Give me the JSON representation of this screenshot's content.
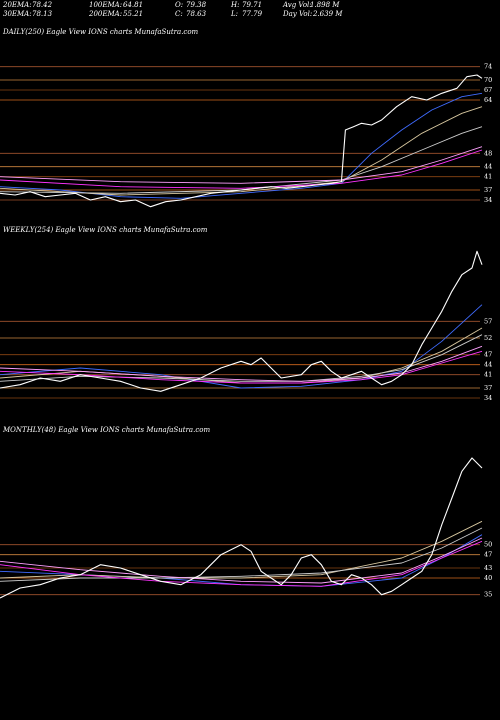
{
  "header": {
    "row1": [
      {
        "label": "20EMA:",
        "value": "78.42"
      },
      {
        "label": "100EMA:",
        "value": "64.81"
      },
      {
        "label": "O:",
        "value": "79.38"
      },
      {
        "label": "H:",
        "value": "79.71"
      },
      {
        "label": "Avg Vol:",
        "value": "1.898 M"
      }
    ],
    "row2": [
      {
        "label": "30EMA:",
        "value": "78.13"
      },
      {
        "label": "200EMA:",
        "value": "55.21"
      },
      {
        "label": "C:",
        "value": "78.63"
      },
      {
        "label": "L:",
        "value": "77.79"
      },
      {
        "label": "Day Vol:",
        "value": "2.639 M"
      }
    ]
  },
  "chart_data": [
    {
      "type": "line",
      "title": "DAILY(250) Eagle View IONS charts MunafaSutra.com",
      "ylim": [
        28,
        82
      ],
      "tick_labels": [
        "74",
        "70",
        "67",
        "64",
        "48",
        "44",
        "41",
        "37",
        "34"
      ],
      "grid": "horizontal",
      "series": [
        {
          "color": "#ffffff",
          "points": [
            [
              0,
              36
            ],
            [
              15,
              35.5
            ],
            [
              30,
              36.5
            ],
            [
              45,
              35
            ],
            [
              60,
              35.5
            ],
            [
              75,
              36
            ],
            [
              90,
              34
            ],
            [
              105,
              35
            ],
            [
              120,
              33.5
            ],
            [
              135,
              34
            ],
            [
              150,
              32
            ],
            [
              165,
              33.5
            ],
            [
              180,
              34
            ],
            [
              195,
              35
            ],
            [
              210,
              36
            ],
            [
              225,
              36.5
            ],
            [
              240,
              37
            ],
            [
              255,
              37.5
            ],
            [
              270,
              38
            ],
            [
              285,
              37.5
            ],
            [
              300,
              38
            ],
            [
              315,
              38.5
            ],
            [
              330,
              39
            ],
            [
              340,
              39.5
            ],
            [
              344,
              55
            ],
            [
              352,
              56
            ],
            [
              360,
              57
            ],
            [
              370,
              56.5
            ],
            [
              380,
              58
            ],
            [
              395,
              62
            ],
            [
              410,
              65
            ],
            [
              425,
              64
            ],
            [
              440,
              66
            ],
            [
              455,
              67.5
            ],
            [
              465,
              71
            ],
            [
              475,
              71.5
            ],
            [
              480,
              70.5
            ]
          ]
        },
        {
          "color": "#3f6bff",
          "points": [
            [
              0,
              38
            ],
            [
              60,
              37
            ],
            [
              120,
              35
            ],
            [
              180,
              34.5
            ],
            [
              240,
              36
            ],
            [
              300,
              37.5
            ],
            [
              340,
              39
            ],
            [
              370,
              48
            ],
            [
              400,
              55
            ],
            [
              430,
              61
            ],
            [
              460,
              65
            ],
            [
              480,
              66
            ]
          ]
        },
        {
          "color": "#d8c8a0",
          "points": [
            [
              0,
              37.5
            ],
            [
              120,
              35.5
            ],
            [
              240,
              36.5
            ],
            [
              340,
              39.5
            ],
            [
              380,
              46
            ],
            [
              420,
              54
            ],
            [
              460,
              60
            ],
            [
              480,
              62
            ]
          ]
        },
        {
          "color": "#cccccc",
          "points": [
            [
              0,
              36.5
            ],
            [
              120,
              36
            ],
            [
              240,
              37
            ],
            [
              340,
              40
            ],
            [
              380,
              44
            ],
            [
              420,
              49
            ],
            [
              460,
              54
            ],
            [
              480,
              56
            ]
          ]
        },
        {
          "color": "#ff33ff",
          "points": [
            [
              0,
              40
            ],
            [
              120,
              38
            ],
            [
              240,
              37.5
            ],
            [
              340,
              39
            ],
            [
              400,
              41.5
            ],
            [
              440,
              45
            ],
            [
              480,
              49
            ]
          ]
        },
        {
          "color": "#ffa0ff",
          "points": [
            [
              0,
              41
            ],
            [
              120,
              39.5
            ],
            [
              240,
              39
            ],
            [
              340,
              40
            ],
            [
              400,
              42.5
            ],
            [
              440,
              46
            ],
            [
              480,
              50
            ]
          ]
        }
      ]
    },
    {
      "type": "line",
      "title": "WEEKLY(254) Eagle View IONS charts MunafaSutra.com",
      "ylim": [
        28,
        82
      ],
      "tick_labels": [
        "57",
        "52",
        "47",
        "44",
        "41",
        "37",
        "34"
      ],
      "grid": "horizontal",
      "series": [
        {
          "color": "#ffffff",
          "points": [
            [
              0,
              37
            ],
            [
              20,
              38
            ],
            [
              40,
              40
            ],
            [
              60,
              39
            ],
            [
              80,
              41
            ],
            [
              100,
              40
            ],
            [
              120,
              39
            ],
            [
              140,
              37
            ],
            [
              160,
              36
            ],
            [
              180,
              38
            ],
            [
              200,
              40
            ],
            [
              220,
              43
            ],
            [
              240,
              45
            ],
            [
              250,
              44
            ],
            [
              260,
              46
            ],
            [
              270,
              43
            ],
            [
              280,
              40
            ],
            [
              300,
              41
            ],
            [
              310,
              44
            ],
            [
              320,
              45
            ],
            [
              330,
              42
            ],
            [
              340,
              40
            ],
            [
              350,
              41
            ],
            [
              360,
              42
            ],
            [
              370,
              40
            ],
            [
              380,
              38
            ],
            [
              390,
              39
            ],
            [
              400,
              41
            ],
            [
              410,
              44
            ],
            [
              420,
              50
            ],
            [
              430,
              55
            ],
            [
              440,
              60
            ],
            [
              450,
              66
            ],
            [
              460,
              71
            ],
            [
              470,
              73
            ],
            [
              475,
              78
            ],
            [
              480,
              74
            ]
          ]
        },
        {
          "color": "#3f6bff",
          "points": [
            [
              0,
              41
            ],
            [
              80,
              43
            ],
            [
              160,
              41
            ],
            [
              240,
              37
            ],
            [
              300,
              37.5
            ],
            [
              360,
              39.5
            ],
            [
              400,
              42
            ],
            [
              440,
              51
            ],
            [
              480,
              62
            ]
          ]
        },
        {
          "color": "#d8c8a0",
          "points": [
            [
              0,
              40
            ],
            [
              80,
              42
            ],
            [
              160,
              40.5
            ],
            [
              240,
              38.5
            ],
            [
              300,
              38.5
            ],
            [
              360,
              40
            ],
            [
              400,
              43
            ],
            [
              440,
              48
            ],
            [
              480,
              55
            ]
          ]
        },
        {
          "color": "#cccccc",
          "points": [
            [
              0,
              39
            ],
            [
              80,
              40.5
            ],
            [
              160,
              40
            ],
            [
              240,
              39
            ],
            [
              300,
              39
            ],
            [
              360,
              40.5
            ],
            [
              400,
              42.5
            ],
            [
              440,
              47
            ],
            [
              480,
              53
            ]
          ]
        },
        {
          "color": "#ff33ff",
          "points": [
            [
              0,
              42
            ],
            [
              80,
              41
            ],
            [
              160,
              39.5
            ],
            [
              240,
              38.5
            ],
            [
              300,
              38.5
            ],
            [
              360,
              39.5
            ],
            [
              400,
              41
            ],
            [
              440,
              44.5
            ],
            [
              480,
              48
            ]
          ]
        },
        {
          "color": "#ffa0ff",
          "points": [
            [
              0,
              43
            ],
            [
              80,
              42
            ],
            [
              160,
              40.5
            ],
            [
              240,
              39.5
            ],
            [
              300,
              39
            ],
            [
              360,
              40
            ],
            [
              400,
              41.5
            ],
            [
              440,
              45
            ],
            [
              480,
              49.5
            ]
          ]
        }
      ]
    },
    {
      "type": "line",
      "title": "MONTHLY(48) Eagle View IONS charts MunafaSutra.com",
      "ylim": [
        28,
        82
      ],
      "tick_labels": [
        "50",
        "47",
        "43",
        "40",
        "35"
      ],
      "grid": "horizontal",
      "series": [
        {
          "color": "#ffffff",
          "points": [
            [
              0,
              34
            ],
            [
              20,
              37
            ],
            [
              40,
              38
            ],
            [
              60,
              40
            ],
            [
              80,
              41
            ],
            [
              100,
              44
            ],
            [
              120,
              43
            ],
            [
              140,
              41
            ],
            [
              160,
              39
            ],
            [
              180,
              38
            ],
            [
              200,
              41
            ],
            [
              220,
              47
            ],
            [
              240,
              50
            ],
            [
              250,
              48
            ],
            [
              260,
              42
            ],
            [
              270,
              40
            ],
            [
              280,
              38
            ],
            [
              290,
              41
            ],
            [
              300,
              46
            ],
            [
              310,
              47
            ],
            [
              320,
              44
            ],
            [
              330,
              39
            ],
            [
              340,
              38
            ],
            [
              350,
              41
            ],
            [
              360,
              40
            ],
            [
              370,
              38
            ],
            [
              380,
              35
            ],
            [
              390,
              36
            ],
            [
              400,
              38
            ],
            [
              410,
              40
            ],
            [
              420,
              42
            ],
            [
              430,
              47
            ],
            [
              440,
              56
            ],
            [
              450,
              64
            ],
            [
              460,
              72
            ],
            [
              470,
              76
            ],
            [
              480,
              73
            ]
          ]
        },
        {
          "color": "#3f6bff",
          "points": [
            [
              0,
              42
            ],
            [
              80,
              41
            ],
            [
              160,
              40
            ],
            [
              240,
              38
            ],
            [
              320,
              37.5
            ],
            [
              400,
              40
            ],
            [
              440,
              46
            ],
            [
              480,
              53
            ]
          ]
        },
        {
          "color": "#d8c8a0",
          "points": [
            [
              0,
              40
            ],
            [
              80,
              41
            ],
            [
              160,
              40
            ],
            [
              240,
              40
            ],
            [
              320,
              41
            ],
            [
              400,
              46
            ],
            [
              440,
              51
            ],
            [
              480,
              57
            ]
          ]
        },
        {
          "color": "#cccccc",
          "points": [
            [
              0,
              39
            ],
            [
              80,
              40
            ],
            [
              160,
              40
            ],
            [
              240,
              40.5
            ],
            [
              320,
              41.5
            ],
            [
              400,
              44.5
            ],
            [
              440,
              49
            ],
            [
              480,
              55
            ]
          ]
        },
        {
          "color": "#ff33ff",
          "points": [
            [
              0,
              44
            ],
            [
              80,
              41
            ],
            [
              160,
              39
            ],
            [
              240,
              38
            ],
            [
              320,
              37.5
            ],
            [
              400,
              41
            ],
            [
              440,
              46
            ],
            [
              480,
              51
            ]
          ]
        },
        {
          "color": "#ffa0ff",
          "points": [
            [
              0,
              45
            ],
            [
              80,
              42.5
            ],
            [
              160,
              40.5
            ],
            [
              240,
              39
            ],
            [
              320,
              38.5
            ],
            [
              400,
              41.5
            ],
            [
              440,
              46.5
            ],
            [
              480,
              52
            ]
          ]
        }
      ]
    }
  ]
}
